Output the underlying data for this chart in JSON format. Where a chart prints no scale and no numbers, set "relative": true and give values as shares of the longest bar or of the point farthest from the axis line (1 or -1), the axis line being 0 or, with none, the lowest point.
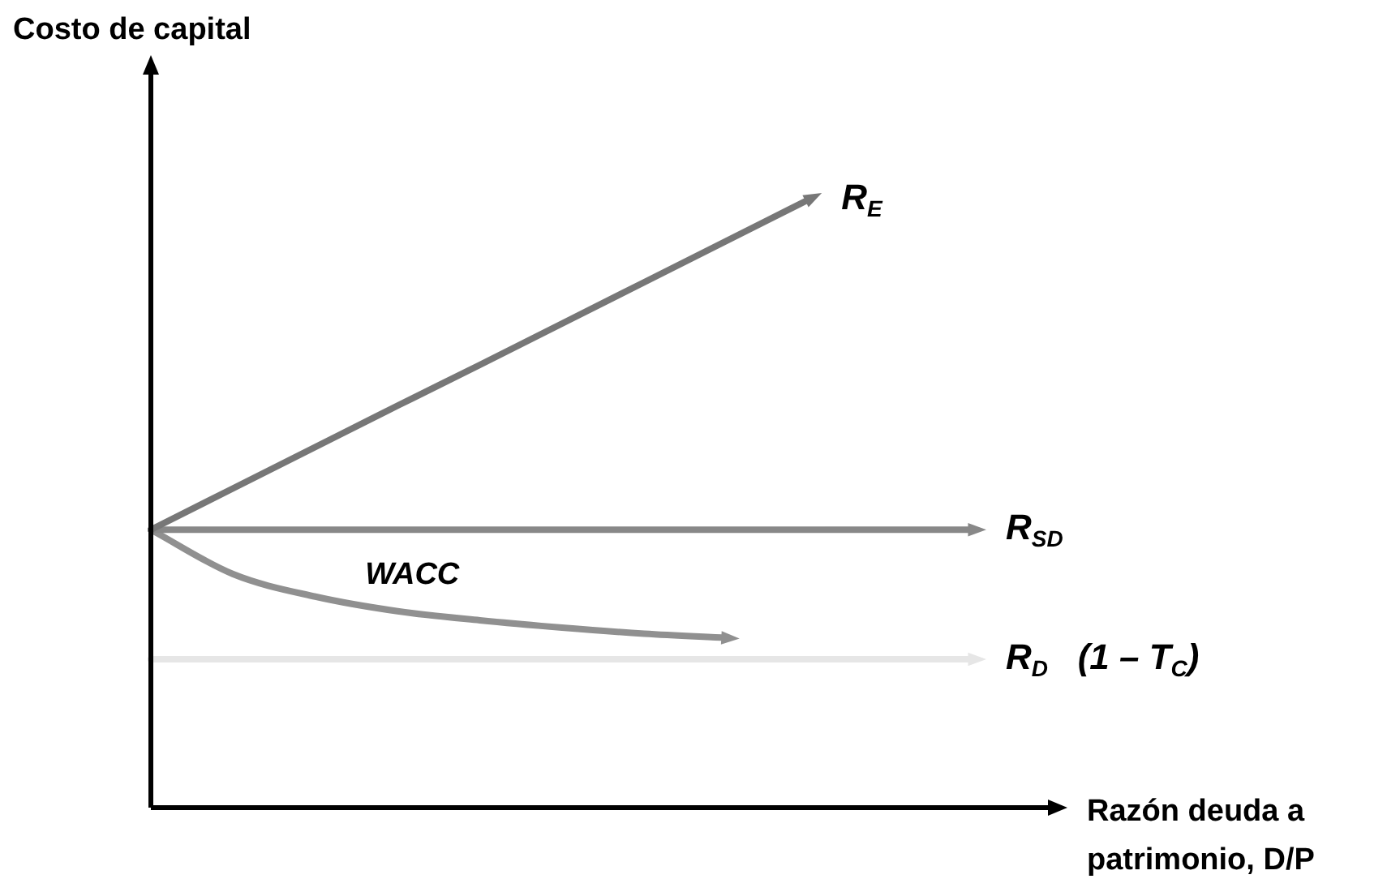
{
  "chart_data": {
    "type": "line",
    "relative": true,
    "ylabel": "Costo de capital",
    "xlabel": "Razón deuda a patrimonio,  D/P",
    "categories": [
      null,
      null,
      null,
      null,
      null,
      null,
      null,
      null,
      null,
      null,
      null
    ],
    "marker": "none",
    "grid": false,
    "legend": false,
    "series": [
      {
        "name": "R$_{E}$",
        "color": "#777777",
        "values": [
          0.457,
          0.525,
          0.593,
          0.661,
          0.728,
          0.796,
          0.864,
          0.932,
          1.0,
          null,
          null
        ]
      },
      {
        "name": "R$_{SD}$",
        "color": "#888888",
        "values": [
          0.457,
          0.457,
          0.457,
          0.457,
          0.457,
          0.457,
          0.457,
          0.457,
          0.457,
          0.457,
          0.457
        ]
      },
      {
        "name": "WACC",
        "color": "#909090",
        "values": [
          0.457,
          0.384,
          0.347,
          0.323,
          0.308,
          0.296,
          0.286,
          0.279,
          null,
          null,
          null
        ]
      },
      {
        "name": "R$_{D}$   (1 – T$_{C}$)",
        "color": "#e6e6e6",
        "values": [
          0.244,
          0.244,
          0.244,
          0.244,
          0.244,
          0.244,
          0.244,
          0.244,
          0.244,
          0.244,
          0.244
        ]
      }
    ]
  }
}
